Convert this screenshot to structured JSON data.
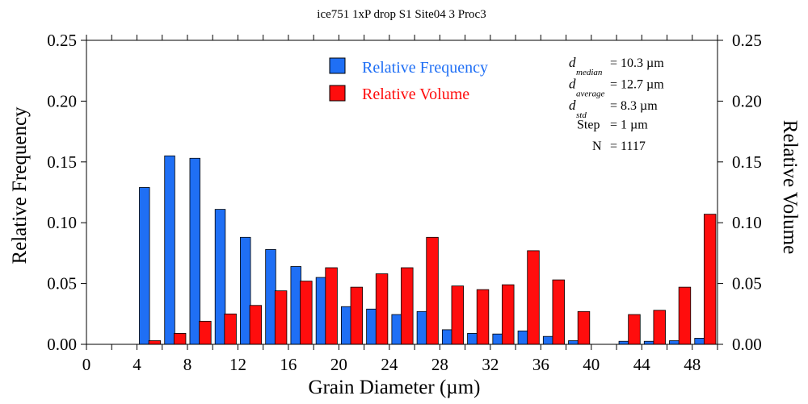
{
  "chart_data": {
    "type": "bar",
    "title": "ice751 1xP drop S1 Site04 3 Proc3",
    "xlabel": "Grain Diameter (µm)",
    "ylabel": "Relative Frequency",
    "y2label": "Relative Volume",
    "xlim": [
      0,
      50
    ],
    "ylim": [
      0,
      0.25
    ],
    "xticks": [
      0,
      4,
      8,
      12,
      16,
      20,
      24,
      28,
      32,
      36,
      40,
      44,
      48
    ],
    "yticks": [
      "0.00",
      "0.05",
      "0.10",
      "0.15",
      "0.20",
      "0.25"
    ],
    "bin_starts": [
      4,
      6,
      8,
      10,
      12,
      14,
      16,
      18,
      20,
      22,
      24,
      26,
      28,
      30,
      32,
      34,
      36,
      38,
      40,
      42,
      44,
      46,
      48
    ],
    "bin_width": 2,
    "series": [
      {
        "name": "Relative Frequency",
        "color": "#1f6ff5",
        "values": [
          0.129,
          0.155,
          0.153,
          0.111,
          0.088,
          0.078,
          0.064,
          0.055,
          0.031,
          0.029,
          0.0245,
          0.027,
          0.012,
          0.009,
          0.0085,
          0.011,
          0.0065,
          0.003,
          0,
          0.0025,
          0.0025,
          0.003,
          0.005
        ]
      },
      {
        "name": "Relative Volume",
        "color": "#ff0d0d",
        "values": [
          0.003,
          0.009,
          0.019,
          0.025,
          0.032,
          0.044,
          0.052,
          0.063,
          0.047,
          0.058,
          0.063,
          0.088,
          0.048,
          0.045,
          0.049,
          0.077,
          0.053,
          0.027,
          0,
          0.0245,
          0.028,
          0.047,
          0.107
        ]
      }
    ],
    "legend_placement": "top-center",
    "stats": [
      {
        "label": "d",
        "sub": "median",
        "value": "=  10.3 µm"
      },
      {
        "label": "d",
        "sub": "average",
        "value": "=  12.7 µm"
      },
      {
        "label": "d",
        "sub": "std",
        "value": "=  8.3 µm"
      },
      {
        "label": "Step",
        "sub": "",
        "value": "=  1 µm"
      },
      {
        "label": "N",
        "sub": "",
        "value": "= 1117"
      }
    ]
  }
}
